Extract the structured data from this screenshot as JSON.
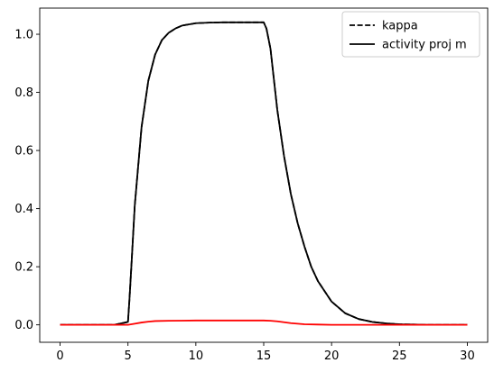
{
  "chart_data": {
    "type": "line",
    "title": "",
    "xlabel": "",
    "ylabel": "",
    "xlim": [
      -1.5,
      31.5
    ],
    "ylim": [
      -0.06,
      1.09
    ],
    "grid": false,
    "legend_position": "top-right",
    "x_ticks": [
      0,
      5,
      10,
      15,
      20,
      25,
      30
    ],
    "x_tick_labels": [
      "0",
      "5",
      "10",
      "15",
      "20",
      "25",
      "30"
    ],
    "y_ticks": [
      0.0,
      0.2,
      0.4,
      0.6,
      0.8,
      1.0
    ],
    "y_tick_labels": [
      "0.0",
      "0.2",
      "0.4",
      "0.6",
      "0.8",
      "1.0"
    ],
    "series": [
      {
        "name": "kappa",
        "color": "#000000",
        "style": "dashed",
        "x": [
          0,
          1,
          2,
          3,
          4,
          5,
          5.1,
          5.25,
          5.5,
          6,
          6.5,
          7,
          7.5,
          8,
          8.5,
          9,
          10,
          11,
          12,
          13,
          14,
          15,
          15.2,
          15.5,
          16,
          16.5,
          17,
          17.5,
          18,
          18.5,
          19,
          20,
          21,
          22,
          23,
          24,
          25,
          26,
          27,
          28,
          29,
          30
        ],
        "y": [
          0,
          0,
          0,
          0,
          0,
          0.01,
          0.08,
          0.2,
          0.41,
          0.68,
          0.84,
          0.93,
          0.98,
          1.005,
          1.02,
          1.03,
          1.038,
          1.04,
          1.041,
          1.041,
          1.041,
          1.041,
          1.02,
          0.95,
          0.74,
          0.58,
          0.45,
          0.35,
          0.27,
          0.2,
          0.15,
          0.08,
          0.04,
          0.02,
          0.01,
          0.005,
          0.002,
          0.001,
          0,
          0,
          0,
          0
        ]
      },
      {
        "name": "activity proj m",
        "color": "#000000",
        "style": "solid",
        "x": [
          0,
          1,
          2,
          3,
          4,
          5,
          5.1,
          5.25,
          5.5,
          6,
          6.5,
          7,
          7.5,
          8,
          8.5,
          9,
          10,
          11,
          12,
          13,
          14,
          15,
          15.2,
          15.5,
          16,
          16.5,
          17,
          17.5,
          18,
          18.5,
          19,
          20,
          21,
          22,
          23,
          24,
          25,
          26,
          27,
          28,
          29,
          30
        ],
        "y": [
          0,
          0,
          0,
          0,
          0,
          0.01,
          0.08,
          0.2,
          0.41,
          0.68,
          0.84,
          0.93,
          0.98,
          1.005,
          1.02,
          1.03,
          1.038,
          1.04,
          1.041,
          1.041,
          1.041,
          1.041,
          1.02,
          0.95,
          0.74,
          0.58,
          0.45,
          0.35,
          0.27,
          0.2,
          0.15,
          0.08,
          0.04,
          0.02,
          0.01,
          0.005,
          0.002,
          0.001,
          0,
          0,
          0,
          0
        ]
      },
      {
        "color": "#ff0000",
        "style": "solid",
        "x": [
          0,
          1,
          2,
          3,
          4,
          5,
          5.5,
          6,
          6.5,
          7,
          8,
          9,
          10,
          11,
          12,
          13,
          14,
          15,
          15.5,
          16,
          16.5,
          17,
          18,
          19,
          20,
          21,
          22,
          23,
          24,
          25,
          26,
          27,
          28,
          29,
          30
        ],
        "y": [
          0,
          0,
          0,
          0,
          0,
          0,
          0.004,
          0.008,
          0.011,
          0.013,
          0.014,
          0.0145,
          0.015,
          0.015,
          0.015,
          0.015,
          0.015,
          0.015,
          0.014,
          0.012,
          0.009,
          0.006,
          0.002,
          0.001,
          0,
          0,
          0,
          0,
          0,
          0,
          0,
          0,
          0,
          0,
          0
        ]
      }
    ]
  }
}
